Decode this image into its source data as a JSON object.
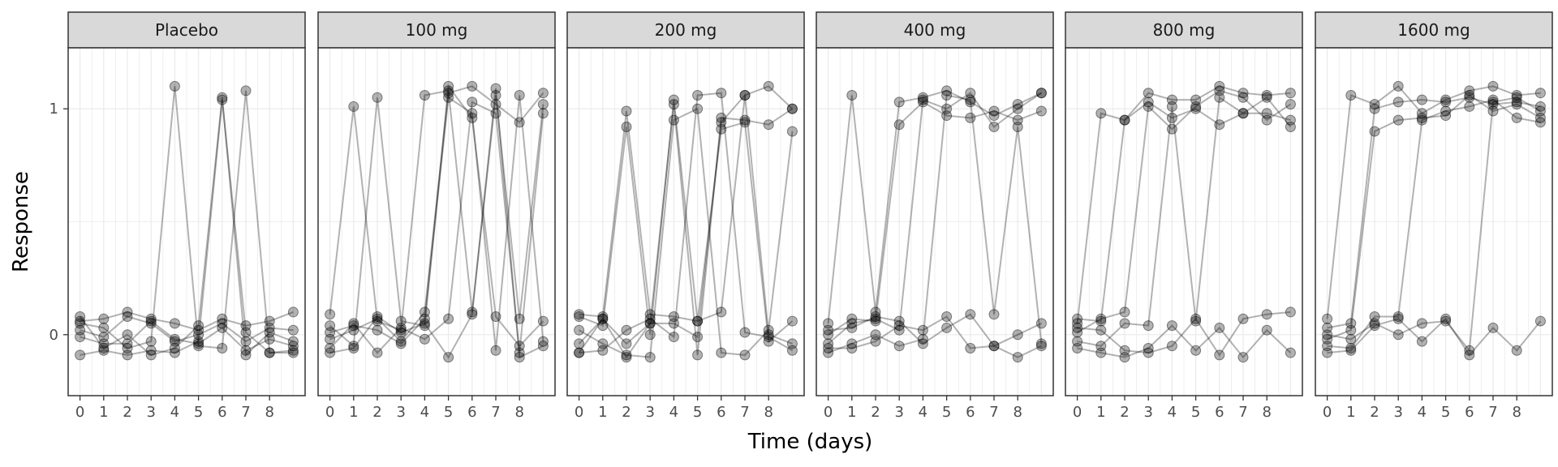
{
  "chart_data": {
    "type": "line",
    "xlabel": "Time (days)",
    "ylabel": "Response",
    "x_ticks": [
      0,
      1,
      2,
      3,
      4,
      5,
      6,
      7,
      8
    ],
    "y_ticks": [
      0,
      1
    ],
    "xlim": [
      -0.5,
      9.5
    ],
    "ylim": [
      -0.27,
      1.27
    ],
    "grid": true,
    "series_style": {
      "color": "#000000",
      "line_alpha": 0.3,
      "point_alpha": 0.3
    },
    "panels": [
      {
        "name": "Placebo",
        "subjects": [
          {
            "x": [
              0,
              1,
              2,
              3,
              4,
              5,
              6,
              7,
              8,
              9
            ],
            "y": [
              0.06,
              0.07,
              0.1,
              0.07,
              0.05,
              0.02,
              0.07,
              0.04,
              0.06,
              0.1
            ]
          },
          {
            "x": [
              0,
              1,
              2,
              3,
              4,
              5,
              6,
              7,
              8,
              9
            ],
            "y": [
              0.02,
              -0.01,
              0.08,
              0.05,
              -0.03,
              0.0,
              0.05,
              -0.03,
              0.03,
              0.02
            ]
          },
          {
            "x": [
              0,
              1,
              2,
              3,
              4,
              5,
              6,
              7,
              8,
              9
            ],
            "y": [
              -0.01,
              -0.04,
              -0.04,
              0.06,
              -0.02,
              -0.04,
              0.03,
              -0.07,
              -0.02,
              -0.05
            ]
          },
          {
            "x": [
              0,
              1,
              2,
              3,
              4,
              5,
              6,
              7,
              8,
              9
            ],
            "y": [
              0.05,
              0.03,
              -0.06,
              -0.03,
              1.1,
              -0.05,
              -0.06,
              1.08,
              -0.08,
              -0.07
            ]
          },
          {
            "x": [
              0,
              1,
              2,
              3,
              4,
              5,
              6,
              7,
              8,
              9
            ],
            "y": [
              0.08,
              -0.06,
              0.0,
              -0.09,
              -0.06,
              0.04,
              1.05,
              -0.09,
              0.01,
              -0.03
            ]
          },
          {
            "x": [
              0,
              1,
              2,
              3,
              4,
              5,
              6,
              7,
              8,
              9
            ],
            "y": [
              -0.09,
              -0.07,
              -0.09,
              -0.07,
              -0.08,
              -0.03,
              1.04,
              0.01,
              -0.08,
              -0.08
            ]
          }
        ]
      },
      {
        "name": "100 mg",
        "subjects": [
          {
            "x": [
              0,
              1,
              2,
              3,
              4,
              5,
              6,
              7,
              8,
              9
            ],
            "y": [
              0.09,
              1.01,
              0.06,
              0.02,
              1.06,
              1.08,
              0.1,
              1.06,
              0.07,
              1.02
            ]
          },
          {
            "x": [
              0,
              1,
              2,
              3,
              4,
              5,
              6,
              7,
              8,
              9
            ],
            "y": [
              0.04,
              -0.05,
              1.05,
              0.06,
              0.04,
              1.1,
              0.96,
              0.08,
              -0.05,
              0.06
            ]
          },
          {
            "x": [
              0,
              1,
              2,
              3,
              4,
              5,
              6,
              7,
              8,
              9
            ],
            "y": [
              -0.02,
              0.02,
              0.07,
              -0.03,
              0.1,
              1.07,
              1.1,
              1.02,
              0.94,
              1.07
            ]
          },
          {
            "x": [
              0,
              1,
              2,
              3,
              4,
              5,
              6,
              7,
              8,
              9
            ],
            "y": [
              -0.06,
              0.05,
              -0.08,
              0.03,
              -0.02,
              0.07,
              1.03,
              0.98,
              -0.08,
              0.98
            ]
          },
          {
            "x": [
              0,
              1,
              2,
              3,
              4,
              5,
              6,
              7,
              8,
              9
            ],
            "y": [
              0.01,
              0.04,
              0.02,
              -0.04,
              0.07,
              1.05,
              0.98,
              -0.07,
              1.06,
              -0.03
            ]
          },
          {
            "x": [
              0,
              1,
              2,
              3,
              4,
              5,
              6,
              7,
              8,
              9
            ],
            "y": [
              -0.08,
              -0.06,
              0.08,
              0.01,
              0.05,
              -0.1,
              0.09,
              1.09,
              -0.1,
              -0.05
            ]
          }
        ]
      },
      {
        "name": "200 mg",
        "subjects": [
          {
            "x": [
              0,
              1,
              2,
              3,
              4,
              5,
              6,
              7,
              8,
              9
            ],
            "y": [
              0.09,
              0.08,
              0.99,
              0.09,
              0.08,
              0.06,
              0.1,
              1.06,
              1.1,
              1.0
            ]
          },
          {
            "x": [
              0,
              1,
              2,
              3,
              4,
              5,
              6,
              7,
              8,
              9
            ],
            "y": [
              0.08,
              0.04,
              0.92,
              0.0,
              1.04,
              0.06,
              0.91,
              0.94,
              -0.03,
              0.06
            ]
          },
          {
            "x": [
              0,
              1,
              2,
              3,
              4,
              5,
              6,
              7,
              8,
              9
            ],
            "y": [
              -0.04,
              0.07,
              -0.04,
              0.05,
              1.02,
              -0.09,
              0.96,
              0.95,
              0.93,
              1.0
            ]
          },
          {
            "x": [
              0,
              1,
              2,
              3,
              4,
              5,
              6,
              7,
              8,
              9
            ],
            "y": [
              0.02,
              -0.04,
              -0.09,
              -0.1,
              0.95,
              1.0,
              -0.08,
              -0.09,
              0.02,
              0.9
            ]
          },
          {
            "x": [
              0,
              1,
              2,
              3,
              4,
              5,
              6,
              7,
              8,
              9
            ],
            "y": [
              -0.08,
              0.07,
              -0.1,
              0.05,
              0.05,
              -0.01,
              0.94,
              1.06,
              0.0,
              -0.04
            ]
          },
          {
            "x": [
              0,
              1,
              2,
              3,
              4,
              5,
              6,
              7,
              8,
              9
            ],
            "y": [
              -0.08,
              -0.07,
              0.02,
              0.07,
              -0.01,
              1.06,
              1.07,
              0.01,
              -0.01,
              -0.07
            ]
          }
        ]
      },
      {
        "name": "400 mg",
        "subjects": [
          {
            "x": [
              0,
              1,
              2,
              3,
              4,
              5,
              6,
              7,
              8,
              9
            ],
            "y": [
              0.05,
              1.06,
              0.1,
              1.03,
              1.05,
              1.08,
              1.03,
              0.97,
              1.02,
              1.07
            ]
          },
          {
            "x": [
              0,
              1,
              2,
              3,
              4,
              5,
              6,
              7,
              8,
              9
            ],
            "y": [
              0.0,
              0.07,
              0.06,
              0.93,
              1.03,
              0.97,
              0.96,
              0.99,
              0.95,
              0.99
            ]
          },
          {
            "x": [
              0,
              1,
              2,
              3,
              4,
              5,
              6,
              7,
              8,
              9
            ],
            "y": [
              -0.04,
              0.05,
              0.07,
              0.02,
              1.04,
              1.0,
              1.07,
              0.92,
              1.0,
              1.07
            ]
          },
          {
            "x": [
              0,
              1,
              2,
              3,
              4,
              5,
              6,
              7,
              8,
              9
            ],
            "y": [
              -0.08,
              -0.04,
              0.0,
              -0.05,
              -0.02,
              1.06,
              1.04,
              0.09,
              0.92,
              -0.04
            ]
          },
          {
            "x": [
              0,
              1,
              2,
              3,
              4,
              5,
              6,
              7,
              8,
              9
            ],
            "y": [
              0.02,
              0.03,
              0.08,
              0.06,
              -0.04,
              0.03,
              0.09,
              -0.05,
              0.0,
              0.05
            ]
          },
          {
            "x": [
              0,
              1,
              2,
              3,
              4,
              5,
              6,
              7,
              8,
              9
            ],
            "y": [
              -0.06,
              -0.06,
              -0.03,
              0.04,
              0.02,
              0.08,
              -0.06,
              -0.05,
              -0.1,
              -0.05
            ]
          }
        ]
      },
      {
        "name": "800 mg",
        "subjects": [
          {
            "x": [
              0,
              1,
              2,
              3,
              4,
              5,
              6,
              7,
              8,
              9
            ],
            "y": [
              0.05,
              0.98,
              0.95,
              1.07,
              1.04,
              1.04,
              1.1,
              1.07,
              1.06,
              1.07
            ]
          },
          {
            "x": [
              0,
              1,
              2,
              3,
              4,
              5,
              6,
              7,
              8,
              9
            ],
            "y": [
              0.01,
              0.07,
              0.1,
              1.01,
              0.91,
              1.01,
              1.08,
              1.05,
              0.95,
              1.02
            ]
          },
          {
            "x": [
              0,
              1,
              2,
              3,
              4,
              5,
              6,
              7,
              8,
              9
            ],
            "y": [
              0.07,
              0.06,
              0.95,
              1.03,
              0.96,
              1.0,
              0.93,
              0.98,
              1.05,
              0.92
            ]
          },
          {
            "x": [
              0,
              1,
              2,
              3,
              4,
              5,
              6,
              7,
              8,
              9
            ],
            "y": [
              -0.03,
              -0.05,
              0.05,
              0.04,
              1.01,
              0.06,
              1.05,
              0.98,
              0.98,
              0.95
            ]
          },
          {
            "x": [
              0,
              1,
              2,
              3,
              4,
              5,
              6,
              7,
              8,
              9
            ],
            "y": [
              0.03,
              0.02,
              -0.07,
              -0.08,
              -0.05,
              0.07,
              -0.09,
              0.07,
              0.09,
              0.1
            ]
          },
          {
            "x": [
              0,
              1,
              2,
              3,
              4,
              5,
              6,
              7,
              8,
              9
            ],
            "y": [
              -0.06,
              -0.08,
              -0.1,
              -0.06,
              0.04,
              -0.07,
              0.03,
              -0.1,
              0.02,
              -0.08
            ]
          }
        ]
      },
      {
        "name": "1600 mg",
        "subjects": [
          {
            "x": [
              0,
              1,
              2,
              3,
              4,
              5,
              6,
              7,
              8,
              9
            ],
            "y": [
              0.07,
              1.06,
              1.02,
              1.1,
              0.98,
              1.04,
              1.08,
              1.1,
              1.06,
              1.07
            ]
          },
          {
            "x": [
              0,
              1,
              2,
              3,
              4,
              5,
              6,
              7,
              8,
              9
            ],
            "y": [
              0.03,
              0.05,
              1.0,
              1.03,
              1.04,
              1.03,
              1.05,
              1.02,
              1.03,
              1.01
            ]
          },
          {
            "x": [
              0,
              1,
              2,
              3,
              4,
              5,
              6,
              7,
              8,
              9
            ],
            "y": [
              -0.02,
              0.02,
              0.9,
              0.95,
              0.96,
              0.97,
              1.06,
              0.99,
              1.02,
              0.96
            ]
          },
          {
            "x": [
              0,
              1,
              2,
              3,
              4,
              5,
              6,
              7,
              8,
              9
            ],
            "y": [
              -0.05,
              -0.06,
              0.08,
              0.08,
              0.95,
              0.99,
              1.01,
              1.04,
              0.96,
              0.94
            ]
          },
          {
            "x": [
              0,
              1,
              2,
              3,
              4,
              5,
              6,
              7,
              8,
              9
            ],
            "y": [
              0.0,
              -0.02,
              0.05,
              0.0,
              0.05,
              0.06,
              -0.07,
              1.03,
              1.05,
              0.99
            ]
          },
          {
            "x": [
              0,
              1,
              2,
              3,
              4,
              5,
              6,
              7,
              8,
              9
            ],
            "y": [
              -0.08,
              -0.07,
              0.04,
              0.07,
              -0.03,
              0.07,
              -0.09,
              0.03,
              -0.07,
              0.06
            ]
          }
        ]
      }
    ]
  }
}
